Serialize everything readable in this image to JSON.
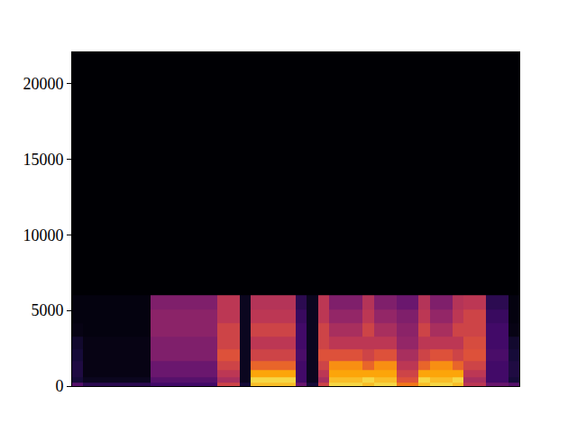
{
  "chart_data": {
    "type": "heatmap",
    "x": [
      0,
      1,
      2,
      3,
      4,
      5,
      6,
      7,
      8,
      9,
      10,
      11,
      12,
      13,
      14,
      15,
      16,
      17,
      18,
      19,
      20,
      21,
      22,
      23,
      24,
      25,
      26,
      27,
      28,
      29,
      30,
      31,
      32,
      33,
      34,
      35,
      36,
      37,
      38,
      39
    ],
    "y": [
      100,
      400,
      800,
      1300,
      2000,
      2800,
      3700,
      4600,
      5500,
      6500,
      9000,
      14000,
      19000,
      21500
    ],
    "z": [
      [
        25,
        15,
        15,
        15,
        15,
        15,
        15,
        20,
        20,
        20,
        20,
        20,
        20,
        55,
        55,
        10,
        85,
        85,
        85,
        85,
        30,
        10,
        55,
        90,
        90,
        90,
        85,
        90,
        90,
        70,
        70,
        85,
        90,
        90,
        85,
        50,
        50,
        30,
        30,
        25
      ],
      [
        10,
        5,
        5,
        5,
        5,
        5,
        5,
        25,
        25,
        25,
        25,
        25,
        25,
        45,
        45,
        5,
        90,
        90,
        90,
        90,
        20,
        5,
        45,
        85,
        85,
        85,
        90,
        85,
        85,
        60,
        60,
        90,
        85,
        85,
        90,
        45,
        45,
        20,
        20,
        10
      ],
      [
        12,
        3,
        3,
        3,
        3,
        3,
        3,
        30,
        30,
        30,
        30,
        30,
        30,
        50,
        50,
        5,
        80,
        80,
        80,
        80,
        20,
        5,
        50,
        80,
        80,
        80,
        80,
        80,
        80,
        55,
        55,
        80,
        80,
        80,
        80,
        50,
        50,
        20,
        20,
        12
      ],
      [
        12,
        3,
        3,
        3,
        3,
        3,
        3,
        30,
        30,
        30,
        30,
        30,
        30,
        55,
        55,
        5,
        65,
        65,
        65,
        65,
        20,
        5,
        55,
        75,
        75,
        75,
        65,
        75,
        75,
        50,
        50,
        65,
        75,
        75,
        65,
        55,
        55,
        20,
        20,
        12
      ],
      [
        10,
        3,
        3,
        3,
        3,
        3,
        3,
        35,
        35,
        35,
        35,
        35,
        35,
        60,
        60,
        5,
        55,
        55,
        55,
        55,
        22,
        5,
        60,
        60,
        60,
        60,
        55,
        60,
        60,
        45,
        45,
        55,
        60,
        60,
        55,
        60,
        60,
        22,
        22,
        10
      ],
      [
        8,
        3,
        3,
        3,
        3,
        3,
        3,
        35,
        35,
        35,
        35,
        35,
        35,
        55,
        55,
        5,
        50,
        50,
        50,
        50,
        20,
        5,
        55,
        50,
        50,
        50,
        50,
        50,
        50,
        40,
        40,
        50,
        50,
        50,
        50,
        58,
        58,
        20,
        20,
        8
      ],
      [
        3,
        2,
        2,
        2,
        2,
        2,
        2,
        38,
        38,
        38,
        38,
        38,
        38,
        55,
        55,
        5,
        55,
        55,
        55,
        55,
        20,
        5,
        55,
        45,
        45,
        45,
        55,
        45,
        45,
        38,
        38,
        55,
        45,
        45,
        55,
        55,
        55,
        20,
        20,
        3
      ],
      [
        2,
        2,
        2,
        2,
        2,
        2,
        2,
        38,
        38,
        38,
        38,
        38,
        38,
        50,
        50,
        5,
        50,
        50,
        50,
        50,
        18,
        5,
        50,
        40,
        40,
        40,
        50,
        40,
        40,
        35,
        35,
        50,
        40,
        40,
        50,
        55,
        55,
        18,
        18,
        2
      ],
      [
        2,
        2,
        2,
        2,
        2,
        2,
        2,
        35,
        35,
        35,
        35,
        35,
        35,
        50,
        50,
        5,
        48,
        48,
        48,
        48,
        15,
        5,
        50,
        35,
        35,
        35,
        48,
        35,
        35,
        30,
        30,
        48,
        35,
        35,
        48,
        50,
        50,
        15,
        15,
        2
      ],
      [
        0,
        0,
        0,
        0,
        0,
        0,
        0,
        0,
        0,
        0,
        0,
        0,
        0,
        0,
        0,
        0,
        0,
        0,
        0,
        0,
        0,
        0,
        0,
        0,
        0,
        0,
        0,
        0,
        0,
        0,
        0,
        0,
        0,
        0,
        0,
        0,
        0,
        0,
        0,
        0
      ],
      [
        0,
        0,
        0,
        0,
        0,
        0,
        0,
        0,
        0,
        0,
        0,
        0,
        0,
        0,
        0,
        0,
        0,
        0,
        0,
        0,
        0,
        0,
        0,
        0,
        0,
        0,
        0,
        0,
        0,
        0,
        0,
        0,
        0,
        0,
        0,
        0,
        0,
        0,
        0,
        0
      ],
      [
        0,
        0,
        0,
        0,
        0,
        0,
        0,
        0,
        0,
        0,
        0,
        0,
        0,
        0,
        0,
        0,
        0,
        0,
        0,
        0,
        0,
        0,
        0,
        0,
        0,
        0,
        0,
        0,
        0,
        0,
        0,
        0,
        0,
        0,
        0,
        0,
        0,
        0,
        0,
        0
      ],
      [
        0,
        0,
        0,
        0,
        0,
        0,
        0,
        0,
        0,
        0,
        0,
        0,
        0,
        0,
        0,
        0,
        0,
        0,
        0,
        0,
        0,
        0,
        0,
        0,
        0,
        0,
        0,
        0,
        0,
        0,
        0,
        0,
        0,
        0,
        0,
        0,
        0,
        0,
        0,
        0
      ],
      [
        0,
        0,
        0,
        0,
        0,
        0,
        0,
        0,
        0,
        0,
        0,
        0,
        0,
        0,
        0,
        0,
        0,
        0,
        0,
        0,
        0,
        0,
        0,
        0,
        0,
        0,
        0,
        0,
        0,
        0,
        0,
        0,
        0,
        0,
        0,
        0,
        0,
        0,
        0,
        0
      ]
    ],
    "zlim": [
      0,
      100
    ],
    "xlim": [
      -0.5,
      39.5
    ],
    "ylim": [
      0,
      22050
    ],
    "yticks": [
      0,
      5000,
      10000,
      15000,
      20000
    ],
    "tick_labels": "y",
    "grid": false,
    "color": "inferno"
  }
}
